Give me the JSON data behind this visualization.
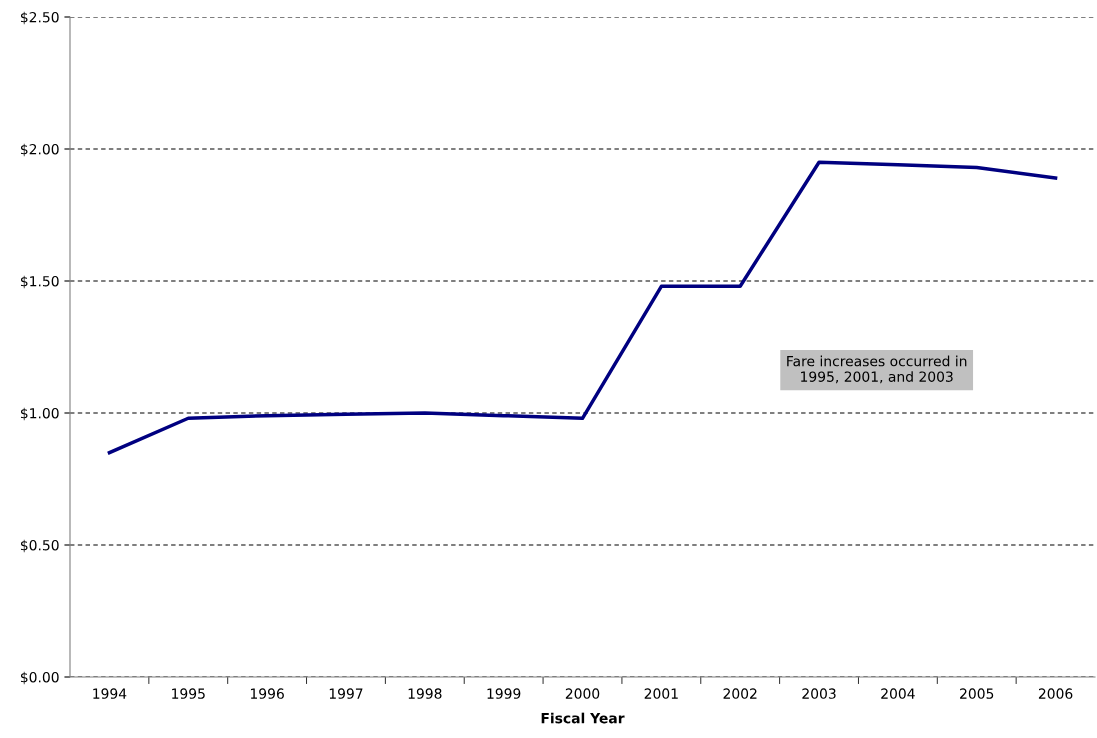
{
  "chart_data": {
    "type": "line",
    "xlabel": "Fiscal Year",
    "categories": [
      "1994",
      "1995",
      "1996",
      "1997",
      "1998",
      "1999",
      "2000",
      "2001",
      "2002",
      "2003",
      "2004",
      "2005",
      "2006"
    ],
    "series": [
      {
        "color": "#000080",
        "values": [
          0.85,
          0.98,
          0.99,
          0.995,
          1.0,
          0.99,
          0.98,
          1.48,
          1.48,
          1.95,
          1.94,
          1.93,
          1.89
        ]
      }
    ],
    "ylim": [
      0,
      2.5
    ],
    "yticks": [
      {
        "value": 0,
        "label": "$0.00"
      },
      {
        "value": 0.5,
        "label": "$0.50"
      },
      {
        "value": 1,
        "label": "$1.00"
      },
      {
        "value": 1.5,
        "label": "$1.50"
      },
      {
        "value": 2,
        "label": "$2.00"
      },
      {
        "value": 2.5,
        "label": "$2.50"
      }
    ],
    "grid": "y",
    "legend": false,
    "marker": "none",
    "line_style": "solid",
    "annotations": [
      "Fare increases occurred in\n1995, 2001, and 2003"
    ]
  }
}
